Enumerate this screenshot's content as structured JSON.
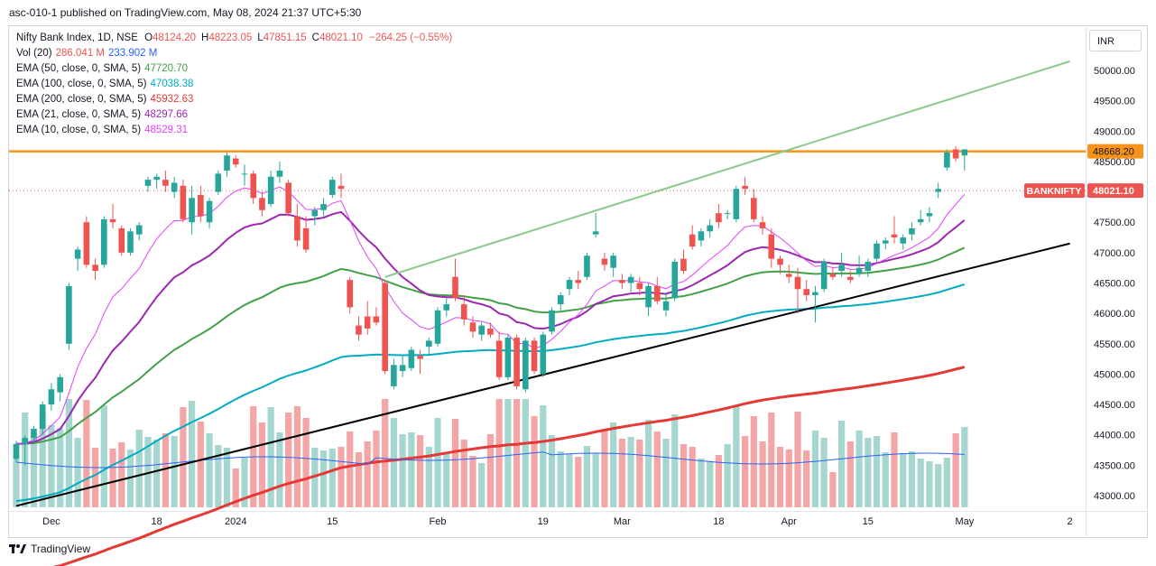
{
  "header": {
    "published_text": "asc-010-1 published on TradingView.com, May 08, 2024 21:37 UTC+5:30"
  },
  "footer": {
    "brand": "TradingView"
  },
  "currency_button": "INR",
  "legend": {
    "title": "Nifty Bank Index, 1D, NSE",
    "ohlc": [
      {
        "k": "O",
        "v": "48124.20"
      },
      {
        "k": "H",
        "v": "48223.05"
      },
      {
        "k": "L",
        "v": "47851.15"
      },
      {
        "k": "C",
        "v": "48021.10"
      }
    ],
    "change": "−264.25 (−0.55%)",
    "indicators": [
      {
        "label": "Vol (20)",
        "values": [
          "286.041 M",
          "233.902 M"
        ],
        "colors": [
          "#ef5350",
          "#2962ff"
        ]
      },
      {
        "label": "EMA (50, close, 0, SMA, 5)",
        "values": [
          "47720.70"
        ],
        "colors": [
          "#43a047"
        ]
      },
      {
        "label": "EMA (100, close, 0, SMA, 5)",
        "values": [
          "47038.38"
        ],
        "colors": [
          "#00acc1"
        ]
      },
      {
        "label": "EMA (200, close, 0, SMA, 5)",
        "values": [
          "45932.63"
        ],
        "colors": [
          "#e53935"
        ]
      },
      {
        "label": "EMA (21, close, 0, SMA, 5)",
        "values": [
          "48297.66"
        ],
        "colors": [
          "#9c27b0"
        ]
      },
      {
        "label": "EMA (10, close, 0, SMA, 5)",
        "values": [
          "48529.31"
        ],
        "colors": [
          "#e040fb"
        ]
      }
    ]
  },
  "colors": {
    "up": "#26a69a",
    "down": "#ef5350",
    "up_volume": "#a5d6d0",
    "down_volume": "#f4a6a6",
    "resistance": "#f7931a",
    "trend_green": "#8bc98b",
    "trend_black": "#000000",
    "ema50": "#43a047",
    "ema100": "#00acc1",
    "ema200": "#e53935",
    "ema21": "#9c27b0",
    "ema10": "#e040fb",
    "vol_ma": "#2962ff"
  },
  "chart_data": {
    "type": "candlestick",
    "symbol": "BANKNIFTY",
    "y_axis_ticks": [
      "50000.00",
      "49500.00",
      "49000.00",
      "48500.00",
      "48000.00",
      "47500.00",
      "47000.00",
      "46500.00",
      "46000.00",
      "45500.00",
      "45000.00",
      "44500.00",
      "44000.00",
      "43500.00",
      "43000.00"
    ],
    "y_tick_values": [
      50000,
      49500,
      49000,
      48500,
      48000,
      47500,
      47000,
      46500,
      46000,
      45500,
      45000,
      44500,
      44000,
      43500,
      43000
    ],
    "x_axis_labels": [
      {
        "text": "Dec",
        "idx": 4
      },
      {
        "text": "18",
        "idx": 16
      },
      {
        "text": "2024",
        "idx": 25
      },
      {
        "text": "15",
        "idx": 36
      },
      {
        "text": "Feb",
        "idx": 48
      },
      {
        "text": "19",
        "idx": 60
      },
      {
        "text": "Mar",
        "idx": 69
      },
      {
        "text": "18",
        "idx": 80
      },
      {
        "text": "Apr",
        "idx": 88
      },
      {
        "text": "15",
        "idx": 97
      },
      {
        "text": "May",
        "idx": 108
      },
      {
        "text": "2",
        "idx": 120
      }
    ],
    "horizontal_level": {
      "value": 48668.2,
      "label": "48668.20"
    },
    "last_price": {
      "value": 48021.1,
      "label": "48021.10",
      "symbol_label": "BANKNIFTY"
    },
    "trendlines": [
      {
        "name": "green",
        "from": {
          "idx": 42,
          "price": 46600
        },
        "to": {
          "idx": 120,
          "price": 50150
        }
      },
      {
        "name": "black",
        "from": {
          "idx": 0,
          "price": 42830
        },
        "to": {
          "idx": 120,
          "price": 47150
        }
      }
    ],
    "candles": [
      {
        "o": 43600,
        "h": 43900,
        "l": 43550,
        "c": 43850
      },
      {
        "o": 43850,
        "h": 44000,
        "l": 43500,
        "c": 43950
      },
      {
        "o": 43950,
        "h": 44150,
        "l": 43850,
        "c": 44100
      },
      {
        "o": 44100,
        "h": 44550,
        "l": 44000,
        "c": 44500
      },
      {
        "o": 44500,
        "h": 44850,
        "l": 44400,
        "c": 44750
      },
      {
        "o": 44700,
        "h": 45000,
        "l": 44550,
        "c": 44950
      },
      {
        "o": 45500,
        "h": 46500,
        "l": 45400,
        "c": 46450
      },
      {
        "o": 46900,
        "h": 47100,
        "l": 46700,
        "c": 47050
      },
      {
        "o": 47500,
        "h": 47600,
        "l": 46750,
        "c": 46800
      },
      {
        "o": 46800,
        "h": 46900,
        "l": 46550,
        "c": 46700
      },
      {
        "o": 46800,
        "h": 47600,
        "l": 46750,
        "c": 47550
      },
      {
        "o": 47550,
        "h": 47800,
        "l": 47400,
        "c": 47500
      },
      {
        "o": 47400,
        "h": 47450,
        "l": 46950,
        "c": 47000
      },
      {
        "o": 47000,
        "h": 47400,
        "l": 46950,
        "c": 47350
      },
      {
        "o": 47300,
        "h": 47500,
        "l": 47200,
        "c": 47450
      },
      {
        "o": 48100,
        "h": 48250,
        "l": 48000,
        "c": 48200
      },
      {
        "o": 48200,
        "h": 48300,
        "l": 48050,
        "c": 48250
      },
      {
        "o": 48200,
        "h": 48350,
        "l": 48000,
        "c": 48100
      },
      {
        "o": 48000,
        "h": 48250,
        "l": 47900,
        "c": 48150
      },
      {
        "o": 48100,
        "h": 48200,
        "l": 47500,
        "c": 47550
      },
      {
        "o": 47500,
        "h": 48100,
        "l": 47300,
        "c": 47900
      },
      {
        "o": 47950,
        "h": 48100,
        "l": 47500,
        "c": 47600
      },
      {
        "o": 47500,
        "h": 47900,
        "l": 47400,
        "c": 47850
      },
      {
        "o": 48000,
        "h": 48350,
        "l": 47950,
        "c": 48300
      },
      {
        "o": 48350,
        "h": 48650,
        "l": 48250,
        "c": 48600
      },
      {
        "o": 48550,
        "h": 48600,
        "l": 48400,
        "c": 48450
      },
      {
        "o": 48300,
        "h": 48450,
        "l": 48100,
        "c": 48300
      },
      {
        "o": 48300,
        "h": 48350,
        "l": 47800,
        "c": 47900
      },
      {
        "o": 47900,
        "h": 48000,
        "l": 47600,
        "c": 47700
      },
      {
        "o": 47800,
        "h": 48350,
        "l": 47750,
        "c": 48250
      },
      {
        "o": 48250,
        "h": 48500,
        "l": 48150,
        "c": 48350
      },
      {
        "o": 48150,
        "h": 48200,
        "l": 47600,
        "c": 47650
      },
      {
        "o": 47600,
        "h": 47800,
        "l": 47100,
        "c": 47200
      },
      {
        "o": 47400,
        "h": 47600,
        "l": 47000,
        "c": 47050
      },
      {
        "o": 47600,
        "h": 47750,
        "l": 47450,
        "c": 47700
      },
      {
        "o": 47700,
        "h": 47900,
        "l": 47600,
        "c": 47800
      },
      {
        "o": 47950,
        "h": 48250,
        "l": 47900,
        "c": 48200
      },
      {
        "o": 48100,
        "h": 48300,
        "l": 47900,
        "c": 48050
      },
      {
        "o": 46550,
        "h": 46600,
        "l": 46000,
        "c": 46100
      },
      {
        "o": 45800,
        "h": 45950,
        "l": 45550,
        "c": 45650
      },
      {
        "o": 45950,
        "h": 46200,
        "l": 45650,
        "c": 45750
      },
      {
        "o": 45950,
        "h": 46100,
        "l": 45800,
        "c": 45850
      },
      {
        "o": 46500,
        "h": 46550,
        "l": 45000,
        "c": 45050
      },
      {
        "o": 44800,
        "h": 45250,
        "l": 44750,
        "c": 45150
      },
      {
        "o": 45050,
        "h": 45300,
        "l": 44950,
        "c": 45150
      },
      {
        "o": 45100,
        "h": 45450,
        "l": 45050,
        "c": 45400
      },
      {
        "o": 45300,
        "h": 45400,
        "l": 45000,
        "c": 45250
      },
      {
        "o": 45450,
        "h": 45600,
        "l": 45300,
        "c": 45550
      },
      {
        "o": 45500,
        "h": 46100,
        "l": 45450,
        "c": 46050
      },
      {
        "o": 46050,
        "h": 46250,
        "l": 45950,
        "c": 46150
      },
      {
        "o": 46600,
        "h": 46900,
        "l": 46200,
        "c": 46250
      },
      {
        "o": 46150,
        "h": 46300,
        "l": 45800,
        "c": 45900
      },
      {
        "o": 45850,
        "h": 45950,
        "l": 45600,
        "c": 45700
      },
      {
        "o": 45650,
        "h": 45850,
        "l": 45550,
        "c": 45800
      },
      {
        "o": 45750,
        "h": 45850,
        "l": 45600,
        "c": 45650
      },
      {
        "o": 45550,
        "h": 45700,
        "l": 44900,
        "c": 44950
      },
      {
        "o": 44950,
        "h": 45650,
        "l": 44900,
        "c": 45600
      },
      {
        "o": 45600,
        "h": 45650,
        "l": 44750,
        "c": 44800
      },
      {
        "o": 44750,
        "h": 45600,
        "l": 44700,
        "c": 45550
      },
      {
        "o": 45550,
        "h": 45600,
        "l": 45000,
        "c": 45050
      },
      {
        "o": 45000,
        "h": 45700,
        "l": 44950,
        "c": 45650
      },
      {
        "o": 45700,
        "h": 46100,
        "l": 45650,
        "c": 46050
      },
      {
        "o": 46150,
        "h": 46350,
        "l": 46050,
        "c": 46300
      },
      {
        "o": 46400,
        "h": 46600,
        "l": 46300,
        "c": 46550
      },
      {
        "o": 46550,
        "h": 46700,
        "l": 46400,
        "c": 46500
      },
      {
        "o": 46600,
        "h": 47000,
        "l": 46550,
        "c": 46950
      },
      {
        "o": 47300,
        "h": 47650,
        "l": 47250,
        "c": 47350
      },
      {
        "o": 46900,
        "h": 47000,
        "l": 46700,
        "c": 46800
      },
      {
        "o": 46750,
        "h": 47000,
        "l": 46600,
        "c": 46950
      },
      {
        "o": 46550,
        "h": 46650,
        "l": 46400,
        "c": 46500
      },
      {
        "o": 46500,
        "h": 46650,
        "l": 46350,
        "c": 46600
      },
      {
        "o": 46500,
        "h": 46600,
        "l": 46300,
        "c": 46400
      },
      {
        "o": 46100,
        "h": 46500,
        "l": 45950,
        "c": 46450
      },
      {
        "o": 46450,
        "h": 46600,
        "l": 46150,
        "c": 46200
      },
      {
        "o": 46050,
        "h": 46350,
        "l": 45950,
        "c": 46200
      },
      {
        "o": 46250,
        "h": 46900,
        "l": 46200,
        "c": 46850
      },
      {
        "o": 46900,
        "h": 47050,
        "l": 46650,
        "c": 46700
      },
      {
        "o": 47300,
        "h": 47450,
        "l": 47050,
        "c": 47100
      },
      {
        "o": 47200,
        "h": 47400,
        "l": 47100,
        "c": 47350
      },
      {
        "o": 47350,
        "h": 47550,
        "l": 47250,
        "c": 47450
      },
      {
        "o": 47650,
        "h": 47800,
        "l": 47400,
        "c": 47500
      },
      {
        "o": 47650,
        "h": 47700,
        "l": 47550,
        "c": 47650
      },
      {
        "o": 47550,
        "h": 48100,
        "l": 47500,
        "c": 48050
      },
      {
        "o": 48100,
        "h": 48250,
        "l": 47950,
        "c": 48050
      },
      {
        "o": 47900,
        "h": 48050,
        "l": 47500,
        "c": 47550
      },
      {
        "o": 47500,
        "h": 47600,
        "l": 47300,
        "c": 47400
      },
      {
        "o": 47300,
        "h": 47400,
        "l": 46750,
        "c": 46900
      },
      {
        "o": 46900,
        "h": 46950,
        "l": 46650,
        "c": 46800
      },
      {
        "o": 46650,
        "h": 46800,
        "l": 46500,
        "c": 46600
      },
      {
        "o": 46600,
        "h": 46750,
        "l": 46000,
        "c": 46400
      },
      {
        "o": 46400,
        "h": 46550,
        "l": 46200,
        "c": 46300
      },
      {
        "o": 46300,
        "h": 46450,
        "l": 45850,
        "c": 46350
      },
      {
        "o": 46400,
        "h": 46900,
        "l": 46350,
        "c": 46850
      },
      {
        "o": 46650,
        "h": 46750,
        "l": 46550,
        "c": 46600
      },
      {
        "o": 46700,
        "h": 47000,
        "l": 46600,
        "c": 46800
      },
      {
        "o": 46600,
        "h": 46700,
        "l": 46500,
        "c": 46550
      },
      {
        "o": 46650,
        "h": 46950,
        "l": 46600,
        "c": 46750
      },
      {
        "o": 46700,
        "h": 46900,
        "l": 46600,
        "c": 46850
      },
      {
        "o": 46900,
        "h": 47200,
        "l": 46850,
        "c": 47150
      },
      {
        "o": 47150,
        "h": 47250,
        "l": 47050,
        "c": 47200
      },
      {
        "o": 47300,
        "h": 47600,
        "l": 47150,
        "c": 47250
      },
      {
        "o": 47150,
        "h": 47300,
        "l": 47050,
        "c": 47250
      },
      {
        "o": 47300,
        "h": 47500,
        "l": 47200,
        "c": 47400
      },
      {
        "o": 47500,
        "h": 47700,
        "l": 47450,
        "c": 47550
      },
      {
        "o": 47600,
        "h": 47750,
        "l": 47500,
        "c": 47650
      },
      {
        "o": 48000,
        "h": 48150,
        "l": 47900,
        "c": 48050
      },
      {
        "o": 48400,
        "h": 48700,
        "l": 48350,
        "c": 48650
      },
      {
        "o": 48700,
        "h": 48750,
        "l": 48500,
        "c": 48550
      },
      {
        "o": 48600,
        "h": 48700,
        "l": 48350,
        "c": 48700
      }
    ],
    "volume_ma_note": "Vol (20) MA line",
    "volumes_relative": []
  }
}
